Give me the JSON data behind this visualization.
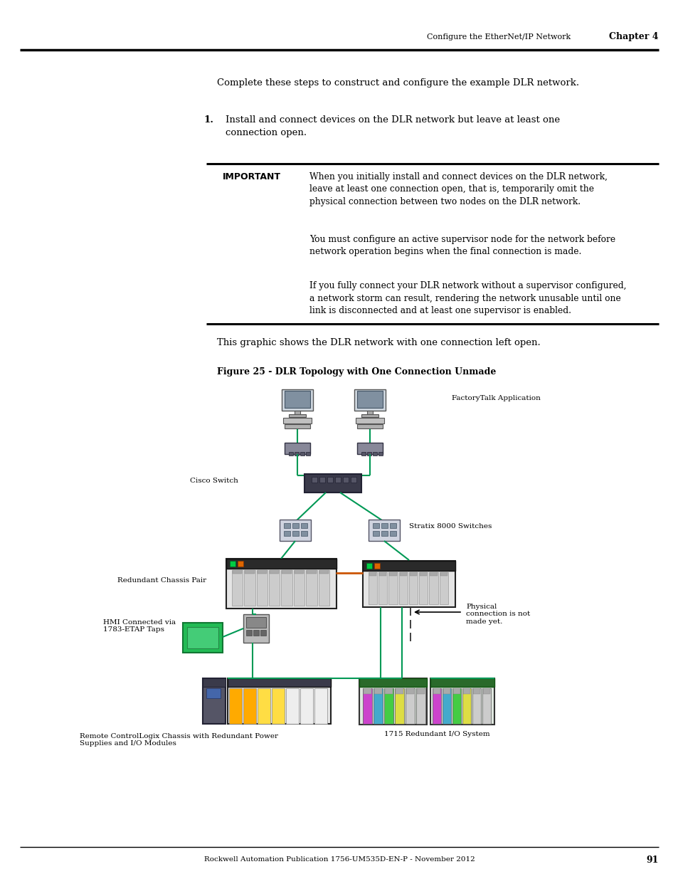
{
  "page_width": 9.54,
  "page_height": 12.35,
  "bg_color": "#ffffff",
  "header_text": "Configure the EtherNet/IP Network",
  "header_chapter": "Chapter 4",
  "footer_text": "Rockwell Automation Publication 1756-UM535D-EN-P - November 2012",
  "footer_page": "91",
  "intro_text": "Complete these steps to construct and configure the example DLR network.",
  "step1_text": "Install and connect devices on the DLR network but leave at least one\nconnection open.",
  "important_label": "IMPORTANT",
  "important_p1": "When you initially install and connect devices on the DLR network,\nleave at least one connection open, that is, temporarily omit the\nphysical connection between two nodes on the DLR network.",
  "important_p2": "You must configure an active supervisor node for the network before\nnetwork operation begins when the final connection is made.",
  "important_p3": "If you fully connect your DLR network without a supervisor configured,\na network storm can result, rendering the network unusable until one\nlink is disconnected and at least one supervisor is enabled.",
  "below_box_text": "This graphic shows the DLR network with one connection left open.",
  "figure_caption": "Figure 25 - DLR Topology with One Connection Unmade",
  "label_redundant_chassis": "Redundant Chassis Pair",
  "label_hmi": "HMI Connected via\n1783-ETAP Taps",
  "label_remote": "Remote ControlLogix Chassis with Redundant Power\nSupplies and I/O Modules",
  "label_1715": "1715 Redundant I/O System",
  "label_factory_talk": "FactoryTalk Application",
  "label_cisco": "Cisco Switch",
  "label_stratix": "Stratix 8000 Switches",
  "label_physical": "Physical\nconnection is not\nmade yet.",
  "green_color": "#009955",
  "orange_color": "#cc5500",
  "dark_color": "#111111"
}
